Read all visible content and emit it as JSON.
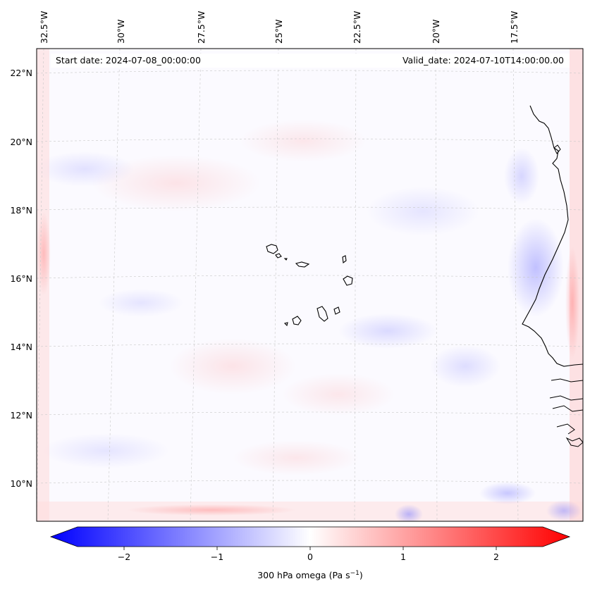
{
  "header": {
    "start_date": "Start date: 2024-07-08_00:00:00",
    "valid_date": "Valid_date: 2024-07-10T14:00:00.00"
  },
  "map": {
    "longitude_labels": [
      "32.5°W",
      "30°W",
      "27.5°W",
      "25°W",
      "22.5°W",
      "20°W",
      "17.5°W"
    ],
    "latitude_labels": [
      "22°N",
      "20°N",
      "18°N",
      "16°N",
      "14°N",
      "12°N",
      "10°N"
    ],
    "gridlines": true
  },
  "colorbar": {
    "label": "300 hPa omega (Pa s",
    "label_exponent": "−1",
    "label_suffix": ")",
    "ticks": [
      "−2",
      "−1",
      "0",
      "1",
      "2"
    ],
    "tick_values": [
      -2,
      -1,
      0,
      1,
      2
    ],
    "range": [
      -2.6,
      2.6
    ],
    "colormap": "bwr",
    "low_color": "#0000ff",
    "mid_color": "#ffffff",
    "high_color": "#ff0000"
  }
}
